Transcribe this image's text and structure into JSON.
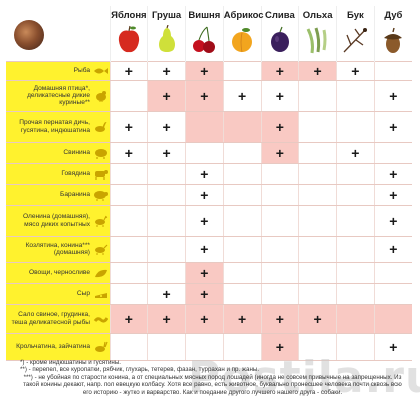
{
  "woods": [
    {
      "name": "Яблоня",
      "icon": "apple-icon",
      "color": "#d62a1f"
    },
    {
      "name": "Груша",
      "icon": "pear-icon",
      "color": "#cfe03a"
    },
    {
      "name": "Вишня",
      "icon": "cherry-icon",
      "color": "#c4101e"
    },
    {
      "name": "Абрикос",
      "icon": "apricot-icon",
      "color": "#f2a51e"
    },
    {
      "name": "Слива",
      "icon": "plum-icon",
      "color": "#3a1f5c"
    },
    {
      "name": "Ольха",
      "icon": "alder-catkins-icon",
      "color": "#9bbf6a"
    },
    {
      "name": "Бук",
      "icon": "beech-branch-icon",
      "color": "#5a3a24"
    },
    {
      "name": "Дуб",
      "icon": "acorn-icon",
      "color": "#8b5a2b"
    }
  ],
  "corner_icon": "spices-icon",
  "mark": "+",
  "colors": {
    "label_bg": "#fff22e",
    "pink_cell": "#f9c9c3",
    "white_cell": "#ffffff"
  },
  "rows": [
    {
      "label": "Рыба",
      "icon": "fish-icon",
      "cells": [
        {
          "v": "+",
          "bg": "white"
        },
        {
          "v": "+",
          "bg": "white"
        },
        {
          "v": "+",
          "bg": "pink"
        },
        {
          "v": "",
          "bg": "white"
        },
        {
          "v": "+",
          "bg": "pink"
        },
        {
          "v": "+",
          "bg": "pink"
        },
        {
          "v": "+",
          "bg": "white"
        },
        {
          "v": "",
          "bg": "white"
        }
      ]
    },
    {
      "label": "Домашняя птица*, деликатесные дикие куриные**",
      "icon": "chicken-icon",
      "cells": [
        {
          "v": "",
          "bg": "white"
        },
        {
          "v": "+",
          "bg": "pink"
        },
        {
          "v": "+",
          "bg": "pink"
        },
        {
          "v": "+",
          "bg": "white"
        },
        {
          "v": "+",
          "bg": "white"
        },
        {
          "v": "",
          "bg": "white"
        },
        {
          "v": "",
          "bg": "white"
        },
        {
          "v": "+",
          "bg": "white"
        }
      ]
    },
    {
      "label": "Прочая пернатая дичь, гусятина, индюшатина",
      "icon": "goose-icon",
      "cells": [
        {
          "v": "+",
          "bg": "white"
        },
        {
          "v": "+",
          "bg": "white"
        },
        {
          "v": "",
          "bg": "pink"
        },
        {
          "v": "",
          "bg": "pink"
        },
        {
          "v": "+",
          "bg": "pink"
        },
        {
          "v": "",
          "bg": "white"
        },
        {
          "v": "",
          "bg": "white"
        },
        {
          "v": "+",
          "bg": "white"
        }
      ]
    },
    {
      "label": "Свинина",
      "icon": "pig-icon",
      "cells": [
        {
          "v": "+",
          "bg": "white"
        },
        {
          "v": "+",
          "bg": "white"
        },
        {
          "v": "",
          "bg": "white"
        },
        {
          "v": "",
          "bg": "white"
        },
        {
          "v": "+",
          "bg": "pink"
        },
        {
          "v": "",
          "bg": "white"
        },
        {
          "v": "+",
          "bg": "white"
        },
        {
          "v": "",
          "bg": "white"
        }
      ]
    },
    {
      "label": "Говядина",
      "icon": "cow-icon",
      "cells": [
        {
          "v": "",
          "bg": "white"
        },
        {
          "v": "",
          "bg": "white"
        },
        {
          "v": "+",
          "bg": "white"
        },
        {
          "v": "",
          "bg": "white"
        },
        {
          "v": "",
          "bg": "white"
        },
        {
          "v": "",
          "bg": "white"
        },
        {
          "v": "",
          "bg": "white"
        },
        {
          "v": "+",
          "bg": "white"
        }
      ]
    },
    {
      "label": "Баранина",
      "icon": "sheep-icon",
      "cells": [
        {
          "v": "",
          "bg": "white"
        },
        {
          "v": "",
          "bg": "white"
        },
        {
          "v": "+",
          "bg": "white"
        },
        {
          "v": "",
          "bg": "white"
        },
        {
          "v": "",
          "bg": "white"
        },
        {
          "v": "",
          "bg": "white"
        },
        {
          "v": "",
          "bg": "white"
        },
        {
          "v": "+",
          "bg": "white"
        }
      ]
    },
    {
      "label": "Оленина (домашняя), мясо диких копытных",
      "icon": "deer-icon",
      "cells": [
        {
          "v": "",
          "bg": "white"
        },
        {
          "v": "",
          "bg": "white"
        },
        {
          "v": "+",
          "bg": "white"
        },
        {
          "v": "",
          "bg": "white"
        },
        {
          "v": "",
          "bg": "white"
        },
        {
          "v": "",
          "bg": "white"
        },
        {
          "v": "",
          "bg": "white"
        },
        {
          "v": "+",
          "bg": "white"
        }
      ]
    },
    {
      "label": "Козлятина, конина*** (домашняя)",
      "icon": "goat-icon",
      "cells": [
        {
          "v": "",
          "bg": "white"
        },
        {
          "v": "",
          "bg": "white"
        },
        {
          "v": "+",
          "bg": "white"
        },
        {
          "v": "",
          "bg": "white"
        },
        {
          "v": "",
          "bg": "white"
        },
        {
          "v": "",
          "bg": "white"
        },
        {
          "v": "",
          "bg": "white"
        },
        {
          "v": "+",
          "bg": "white"
        }
      ]
    },
    {
      "label": "Овощи, черносливе",
      "icon": "eggplant-icon",
      "cells": [
        {
          "v": "",
          "bg": "white"
        },
        {
          "v": "",
          "bg": "white"
        },
        {
          "v": "+",
          "bg": "pink"
        },
        {
          "v": "",
          "bg": "white"
        },
        {
          "v": "",
          "bg": "white"
        },
        {
          "v": "",
          "bg": "white"
        },
        {
          "v": "",
          "bg": "white"
        },
        {
          "v": "",
          "bg": "white"
        }
      ]
    },
    {
      "label": "Сыр",
      "icon": "cheese-icon",
      "cells": [
        {
          "v": "",
          "bg": "white"
        },
        {
          "v": "+",
          "bg": "white"
        },
        {
          "v": "+",
          "bg": "pink"
        },
        {
          "v": "",
          "bg": "white"
        },
        {
          "v": "",
          "bg": "white"
        },
        {
          "v": "",
          "bg": "white"
        },
        {
          "v": "",
          "bg": "white"
        },
        {
          "v": "",
          "bg": "white"
        }
      ]
    },
    {
      "label": "Сало свиное, грудинка, теша деликатесной рыбы",
      "icon": "bacon-icon",
      "cells": [
        {
          "v": "+",
          "bg": "pink"
        },
        {
          "v": "+",
          "bg": "pink"
        },
        {
          "v": "+",
          "bg": "pink"
        },
        {
          "v": "+",
          "bg": "pink"
        },
        {
          "v": "+",
          "bg": "pink"
        },
        {
          "v": "+",
          "bg": "pink"
        },
        {
          "v": "",
          "bg": "pink"
        },
        {
          "v": "",
          "bg": "pink"
        }
      ]
    },
    {
      "label": "Крольчатина, зайчатина",
      "icon": "rabbit-icon",
      "cells": [
        {
          "v": "",
          "bg": "white"
        },
        {
          "v": "",
          "bg": "white"
        },
        {
          "v": "",
          "bg": "white"
        },
        {
          "v": "",
          "bg": "white"
        },
        {
          "v": "+",
          "bg": "pink"
        },
        {
          "v": "",
          "bg": "white"
        },
        {
          "v": "",
          "bg": "white"
        },
        {
          "v": "+",
          "bg": "white"
        }
      ]
    }
  ],
  "footnotes": [
    "*) - кроме индюшатины и гусятины.",
    "**) - перепел, все куропатки, рябчик, глухарь, тетерев, фазан, туррахан и пр. жаны.",
    "***) - не убойная по старости конина, а от специальных мясных пород лошадей (иногда не совсем привычные на запрещенных. Из такой конины декают, напр. пол евецкую колбасу. Хотя все равно, есть животное, буквально пронесшее человека почти сквозь всю его историю - жутко и варварство. Как и поедание другого лучшего нашего друга - собаки."
  ],
  "watermark": "Postila.ru"
}
